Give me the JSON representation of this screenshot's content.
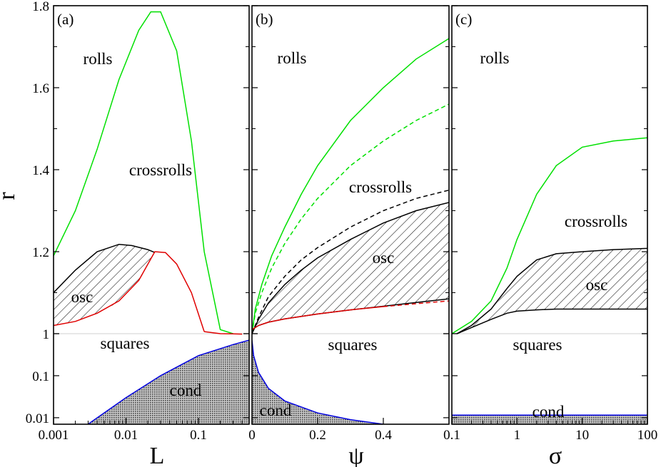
{
  "figure": {
    "ylabel": "r"
  },
  "colors": {
    "green": "#00e000",
    "red": "#e00000",
    "blue": "#0000e0",
    "black": "#000000"
  },
  "chart_data": [
    {
      "type": "line",
      "panel_label": "(a)",
      "xlabel": "L",
      "xscale": "log",
      "xlim": [
        0.001,
        0.5
      ],
      "x_ticks": [
        0.001,
        0.01,
        0.1
      ],
      "x_tick_labels": [
        "0.001",
        "0.01",
        "0.1"
      ],
      "ylim_top": [
        1.0,
        1.8
      ],
      "y_ticks_top": [
        1,
        1.2,
        1.4,
        1.6,
        1.8
      ],
      "y_tick_labels_top": [
        "1",
        "1.2",
        "1.4",
        "1.6",
        "1.8"
      ],
      "ylim_bottom_log": [
        0.007,
        1
      ],
      "y_ticks_bottom": [
        0.01,
        0.1,
        1
      ],
      "y_tick_labels_bottom": [
        "0.01",
        "0.1",
        "1"
      ],
      "region_labels": [
        "rolls",
        "crossrolls",
        "osc",
        "squares",
        "cond"
      ],
      "series": [
        {
          "name": "rolls-crossrolls",
          "color": "green",
          "style": "solid",
          "x": [
            0.001,
            0.002,
            0.004,
            0.008,
            0.015,
            0.022,
            0.03,
            0.05,
            0.08,
            0.12,
            0.2,
            0.3
          ],
          "y": [
            1.19,
            1.3,
            1.45,
            1.62,
            1.74,
            1.785,
            1.785,
            1.69,
            1.47,
            1.2,
            1.01,
            1.0
          ]
        },
        {
          "name": "osc-upper",
          "color": "black",
          "style": "solid",
          "x": [
            0.001,
            0.002,
            0.004,
            0.008,
            0.012,
            0.02,
            0.025
          ],
          "y": [
            1.1,
            1.155,
            1.2,
            1.218,
            1.215,
            1.205,
            1.198
          ]
        },
        {
          "name": "osc-lower",
          "color": "red",
          "style": "solid",
          "x": [
            0.001,
            0.002,
            0.004,
            0.008,
            0.015,
            0.025,
            0.035,
            0.05,
            0.08,
            0.12
          ],
          "y": [
            1.02,
            1.03,
            1.05,
            1.08,
            1.13,
            1.2,
            1.198,
            1.17,
            1.1,
            1.005
          ]
        },
        {
          "name": "red-tail",
          "color": "red",
          "style": "solid",
          "x": [
            0.12,
            0.2,
            0.3,
            0.4
          ],
          "y": [
            1.005,
            1.0,
            0.99,
            0.975
          ]
        },
        {
          "name": "cond-boundary",
          "color": "blue",
          "style": "solid",
          "x": [
            0.001,
            0.003,
            0.01,
            0.03,
            0.1,
            0.3,
            0.5
          ],
          "y": [
            0.004,
            0.007,
            0.03,
            0.1,
            0.3,
            0.55,
            0.7
          ]
        }
      ]
    },
    {
      "type": "line",
      "panel_label": "(b)",
      "xlabel": "ψ",
      "xscale": "linear",
      "xlim": [
        0,
        0.6
      ],
      "x_ticks": [
        0,
        0.2,
        0.4
      ],
      "x_tick_labels": [
        "0",
        "0.2",
        "0.4"
      ],
      "ylim_top": [
        1.0,
        1.8
      ],
      "ylim_bottom_log": [
        0.007,
        1
      ],
      "region_labels": [
        "rolls",
        "crossrolls",
        "osc",
        "squares",
        "cond"
      ],
      "series": [
        {
          "name": "green-solid",
          "color": "green",
          "style": "solid",
          "x": [
            0,
            0.01,
            0.03,
            0.06,
            0.1,
            0.15,
            0.2,
            0.3,
            0.4,
            0.5,
            0.6
          ],
          "y": [
            1.0,
            1.06,
            1.12,
            1.19,
            1.26,
            1.34,
            1.41,
            1.52,
            1.6,
            1.67,
            1.72
          ]
        },
        {
          "name": "green-dashed",
          "color": "green",
          "style": "dashed",
          "x": [
            0,
            0.01,
            0.03,
            0.06,
            0.1,
            0.15,
            0.2,
            0.3,
            0.4,
            0.5,
            0.6
          ],
          "y": [
            1.0,
            1.05,
            1.1,
            1.16,
            1.22,
            1.28,
            1.33,
            1.41,
            1.47,
            1.52,
            1.56
          ]
        },
        {
          "name": "black-dashed",
          "color": "black",
          "style": "dashed",
          "x": [
            0,
            0.02,
            0.05,
            0.1,
            0.15,
            0.2,
            0.3,
            0.4,
            0.5,
            0.6
          ],
          "y": [
            1.0,
            1.04,
            1.09,
            1.14,
            1.18,
            1.21,
            1.26,
            1.3,
            1.33,
            1.35
          ]
        },
        {
          "name": "osc-upper",
          "color": "black",
          "style": "solid",
          "x": [
            0,
            0.02,
            0.05,
            0.1,
            0.15,
            0.2,
            0.3,
            0.4,
            0.5,
            0.6
          ],
          "y": [
            1.0,
            1.035,
            1.075,
            1.12,
            1.155,
            1.185,
            1.23,
            1.27,
            1.3,
            1.32
          ]
        },
        {
          "name": "osc-lower-black",
          "color": "black",
          "style": "solid",
          "x": [
            0,
            0.02,
            0.05,
            0.1,
            0.2,
            0.3,
            0.4,
            0.5,
            0.6
          ],
          "y": [
            1.01,
            1.02,
            1.028,
            1.036,
            1.048,
            1.058,
            1.067,
            1.076,
            1.085
          ]
        },
        {
          "name": "osc-lower-red",
          "color": "red",
          "style": "solid",
          "x": [
            0,
            0.02,
            0.05,
            0.1,
            0.2,
            0.3,
            0.4
          ],
          "y": [
            1.01,
            1.02,
            1.028,
            1.036,
            1.048,
            1.058,
            1.066
          ]
        },
        {
          "name": "red-dashed",
          "color": "red",
          "style": "dashed",
          "x": [
            0.4,
            0.5,
            0.6
          ],
          "y": [
            1.066,
            1.073,
            1.08
          ]
        },
        {
          "name": "cond-boundary",
          "color": "blue",
          "style": "solid",
          "x": [
            0,
            0.005,
            0.02,
            0.05,
            0.1,
            0.2,
            0.3,
            0.4
          ],
          "y": [
            0.7,
            0.3,
            0.12,
            0.05,
            0.025,
            0.013,
            0.009,
            0.007
          ]
        }
      ]
    },
    {
      "type": "line",
      "panel_label": "(c)",
      "xlabel": "σ",
      "xscale": "log",
      "xlim": [
        0.1,
        100
      ],
      "x_ticks": [
        0.1,
        1,
        10,
        100
      ],
      "x_tick_labels": [
        "0.1",
        "1",
        "10",
        "100"
      ],
      "ylim_top": [
        1.0,
        1.8
      ],
      "ylim_bottom_log": [
        0.007,
        1
      ],
      "region_labels": [
        "rolls",
        "crossrolls",
        "osc",
        "squares",
        "cond"
      ],
      "series": [
        {
          "name": "green",
          "color": "green",
          "style": "solid",
          "x": [
            0.1,
            0.2,
            0.4,
            0.7,
            1,
            2,
            4,
            10,
            30,
            100
          ],
          "y": [
            1.0,
            1.03,
            1.08,
            1.16,
            1.23,
            1.34,
            1.41,
            1.455,
            1.47,
            1.478
          ]
        },
        {
          "name": "osc-upper",
          "color": "black",
          "style": "solid",
          "x": [
            0.12,
            0.2,
            0.4,
            0.7,
            1,
            2,
            4,
            10,
            30,
            100
          ],
          "y": [
            1.0,
            1.02,
            1.06,
            1.11,
            1.14,
            1.18,
            1.195,
            1.2,
            1.205,
            1.208
          ]
        },
        {
          "name": "osc-lower",
          "color": "black",
          "style": "solid",
          "x": [
            0.12,
            0.2,
            0.4,
            0.7,
            1,
            2,
            4,
            10,
            30,
            100
          ],
          "y": [
            1.0,
            1.015,
            1.035,
            1.05,
            1.055,
            1.058,
            1.06,
            1.06,
            1.06,
            1.06
          ]
        },
        {
          "name": "cond-boundary",
          "color": "blue",
          "style": "solid",
          "x": [
            0.1,
            1,
            10,
            100
          ],
          "y": [
            0.0115,
            0.0115,
            0.0115,
            0.0115
          ]
        }
      ]
    }
  ]
}
